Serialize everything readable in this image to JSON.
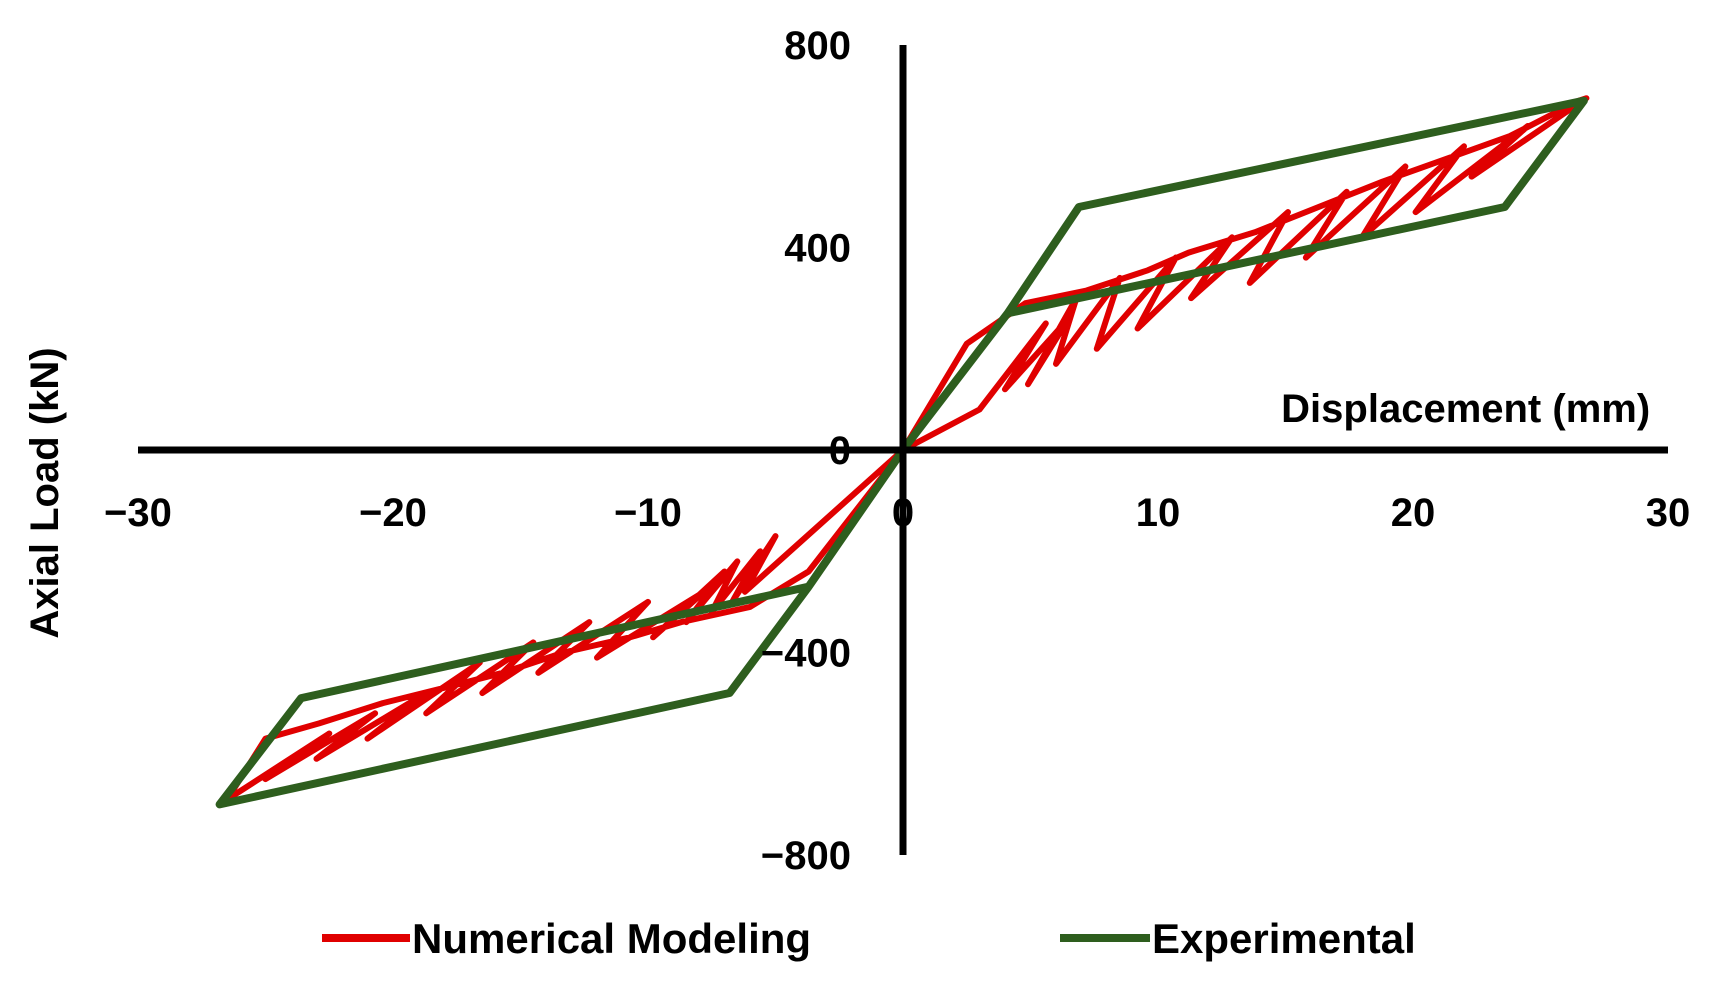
{
  "chart_data": {
    "type": "line",
    "xlabel": "Displacement (mm)",
    "ylabel": "Axial Load (kN)",
    "xlim": [
      -30,
      30
    ],
    "ylim": [
      -800,
      800
    ],
    "x_ticks": [
      -30,
      -20,
      -10,
      0,
      10,
      20,
      30
    ],
    "x_tick_labels": [
      "−30",
      "−20",
      "−10",
      "0",
      "10",
      "20",
      "30"
    ],
    "y_ticks": [
      800,
      400,
      0,
      -400,
      -800
    ],
    "y_tick_labels": [
      "800",
      "400",
      "0",
      "−400",
      "−800"
    ],
    "grid": false,
    "legend_position": "bottom",
    "colors": {
      "numerical": "#e00000",
      "experimental": "#2e5e1e",
      "axis": "#000000"
    },
    "series": [
      {
        "name": "Numerical Modeling",
        "color": "#e00000",
        "x": [
          0,
          2.5,
          4.8,
          7.2,
          9.6,
          11.2,
          13.8,
          16.3,
          18.8,
          21.3,
          23.8,
          26.5,
          26.8,
          22.3,
          24.5,
          20.1,
          22.0,
          18.0,
          19.7,
          15.8,
          17.4,
          13.6,
          15.1,
          11.3,
          12.9,
          9.2,
          10.7,
          7.6,
          8.5,
          6.0,
          6.8,
          4.9,
          6.5,
          4.0,
          5.6,
          3.0,
          0,
          -3.7,
          -6.0,
          -8.7,
          -10.7,
          -13.3,
          -15.7,
          -18.0,
          -20.4,
          -22.9,
          -25.0,
          -26.5,
          -26.8,
          -22.5,
          -25.0,
          -20.7,
          -23.0,
          -18.7,
          -21.0,
          -16.6,
          -18.7,
          -14.5,
          -16.5,
          -12.3,
          -14.3,
          -10.0,
          -12.0,
          -7.8,
          -9.8,
          -7.0,
          -8.5,
          -6.5,
          -7.5,
          -5.6,
          -6.7,
          -5.0,
          -6.2,
          0
        ],
        "y": [
          0,
          210,
          290,
          315,
          355,
          390,
          430,
          480,
          530,
          575,
          620,
          690,
          695,
          540,
          640,
          470,
          600,
          420,
          560,
          380,
          510,
          330,
          470,
          300,
          420,
          240,
          380,
          200,
          340,
          170,
          300,
          130,
          260,
          120,
          250,
          80,
          0,
          -240,
          -310,
          -340,
          -370,
          -400,
          -440,
          -470,
          -500,
          -540,
          -570,
          -690,
          -700,
          -560,
          -650,
          -520,
          -610,
          -480,
          -570,
          -420,
          -520,
          -380,
          -480,
          -340,
          -440,
          -300,
          -410,
          -280,
          -370,
          -240,
          -340,
          -220,
          -320,
          -200,
          -300,
          -170,
          -280,
          0
        ]
      },
      {
        "name": "Experimental",
        "color": "#2e5e1e",
        "x": [
          0,
          4.1,
          6.9,
          26.7,
          23.6,
          4.1,
          0,
          -3.7,
          -6.8,
          -26.8,
          -23.6,
          -3.7,
          0
        ],
        "y": [
          0,
          270,
          480,
          690,
          480,
          270,
          0,
          -270,
          -480,
          -700,
          -490,
          -270,
          0
        ]
      }
    ]
  },
  "legend": {
    "numerical_label": "Numerical Modeling",
    "experimental_label": "Experimental"
  }
}
